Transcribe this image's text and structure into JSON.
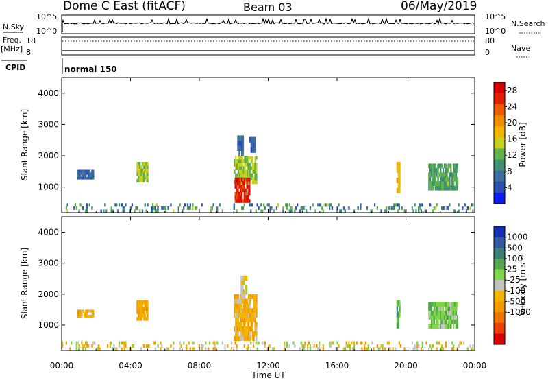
{
  "header": {
    "station": "Dome C East (fitACF)",
    "beam": "Beam 03",
    "date": "06/May/2019"
  },
  "top_panels": {
    "nsky": {
      "left_label": "N.Sky",
      "left_ticks": [
        "10^5",
        "10^0"
      ],
      "right_ticks": [
        "10^5",
        "10^0"
      ],
      "right_label": "N.Search"
    },
    "freq": {
      "left_label_1": "Freq.",
      "left_label_2": "[MHz]",
      "left_ticks": [
        "18",
        "8"
      ],
      "right_ticks": [
        "80",
        "0"
      ],
      "right_label": "Nave"
    },
    "cpid": {
      "label": "CPID",
      "mode_text": "normal 150"
    }
  },
  "colors": {
    "power": [
      "#0a1cf0",
      "#2a4fb0",
      "#3d6da0",
      "#3f8f70",
      "#5fb34a",
      "#c8d21e",
      "#f2b400",
      "#f08c00",
      "#ef5a00",
      "#e01e00",
      "#d80000"
    ],
    "velocity": [
      "#1530b8",
      "#2f5aa0",
      "#3a7e76",
      "#53a84e",
      "#7fd646",
      "#c3c3c3",
      "#f2b400",
      "#f09a00",
      "#ef7300",
      "#e84000",
      "#d80000"
    ]
  },
  "chart_data": [
    {
      "type": "heatmap",
      "name": "power",
      "xlabel": "",
      "ylabel": "Slant Range [km]",
      "x_ticks": [
        "00:00",
        "04:00",
        "08:00",
        "12:00",
        "16:00",
        "20:00",
        "00:00"
      ],
      "y_ticks": [
        "1000",
        "2000",
        "3000",
        "4000"
      ],
      "xlim": [
        0,
        24
      ],
      "ylim": [
        180,
        4500
      ],
      "colorbar": {
        "label": "Power [dB]",
        "ticks": [
          "4",
          "8",
          "12",
          "16",
          "20",
          "24",
          "28"
        ],
        "range": [
          0,
          30
        ]
      },
      "patches": [
        {
          "t0": 0.9,
          "t1": 1.8,
          "r0": 1250,
          "r1": 1550,
          "v": 6,
          "rows": 4
        },
        {
          "t0": 4.35,
          "t1": 5.0,
          "r0": 1150,
          "r1": 1800,
          "v": 14,
          "rows": 6
        },
        {
          "t0": 10.0,
          "t1": 11.3,
          "r0": 1100,
          "r1": 2000,
          "v": 14,
          "rows": 8
        },
        {
          "t0": 10.05,
          "t1": 10.9,
          "r0": 500,
          "r1": 1300,
          "v": 26,
          "rows": 7
        },
        {
          "t0": 10.2,
          "t1": 10.5,
          "r0": 2000,
          "r1": 2650,
          "v": 6,
          "rows": 4
        },
        {
          "t0": 10.9,
          "t1": 11.2,
          "r0": 2100,
          "r1": 2600,
          "v": 5,
          "rows": 3
        },
        {
          "t0": 19.45,
          "t1": 19.6,
          "r0": 800,
          "r1": 1800,
          "v": 18,
          "rows": 6
        },
        {
          "t0": 21.3,
          "t1": 23.0,
          "r0": 900,
          "r1": 1750,
          "v": 11,
          "rows": 6
        },
        {
          "t0": 0.0,
          "t1": 23.9,
          "r0": 180,
          "r1": 480,
          "v": 9,
          "rows": 3,
          "sparse": true
        }
      ]
    },
    {
      "type": "heatmap",
      "name": "velocity",
      "xlabel": "Time UT",
      "ylabel": "Slant Range [km]",
      "x_ticks": [
        "00:00",
        "04:00",
        "08:00",
        "12:00",
        "16:00",
        "20:00",
        "00:00"
      ],
      "y_ticks": [
        "1000",
        "2000",
        "3000",
        "4000"
      ],
      "xlim": [
        0,
        24
      ],
      "ylim": [
        180,
        4500
      ],
      "colorbar": {
        "label": "Velocity [m s^-1]",
        "ticks": [
          "1000",
          "500",
          "100",
          "25",
          "-25",
          "-100",
          "-500",
          "-1000"
        ],
        "range": [
          -1250,
          1250
        ]
      },
      "patches": [
        {
          "t0": 0.9,
          "t1": 1.8,
          "r0": 1250,
          "r1": 1500,
          "v": -300,
          "rows": 3
        },
        {
          "t0": 4.35,
          "t1": 5.0,
          "r0": 1150,
          "r1": 1800,
          "v": -350,
          "rows": 6
        },
        {
          "t0": 10.0,
          "t1": 11.3,
          "r0": 500,
          "r1": 2000,
          "v": -300,
          "rows": 10
        },
        {
          "t0": 10.4,
          "t1": 10.7,
          "r0": 2000,
          "r1": 2600,
          "v": -60,
          "rows": 4
        },
        {
          "t0": 19.45,
          "t1": 19.6,
          "r0": 900,
          "r1": 1800,
          "v": 400,
          "rows": 5
        },
        {
          "t0": 21.3,
          "t1": 23.0,
          "r0": 900,
          "r1": 1750,
          "v": 250,
          "rows": 6
        },
        {
          "t0": 0.0,
          "t1": 23.9,
          "r0": 180,
          "r1": 480,
          "v": -120,
          "rows": 3,
          "sparse": true
        }
      ]
    }
  ]
}
